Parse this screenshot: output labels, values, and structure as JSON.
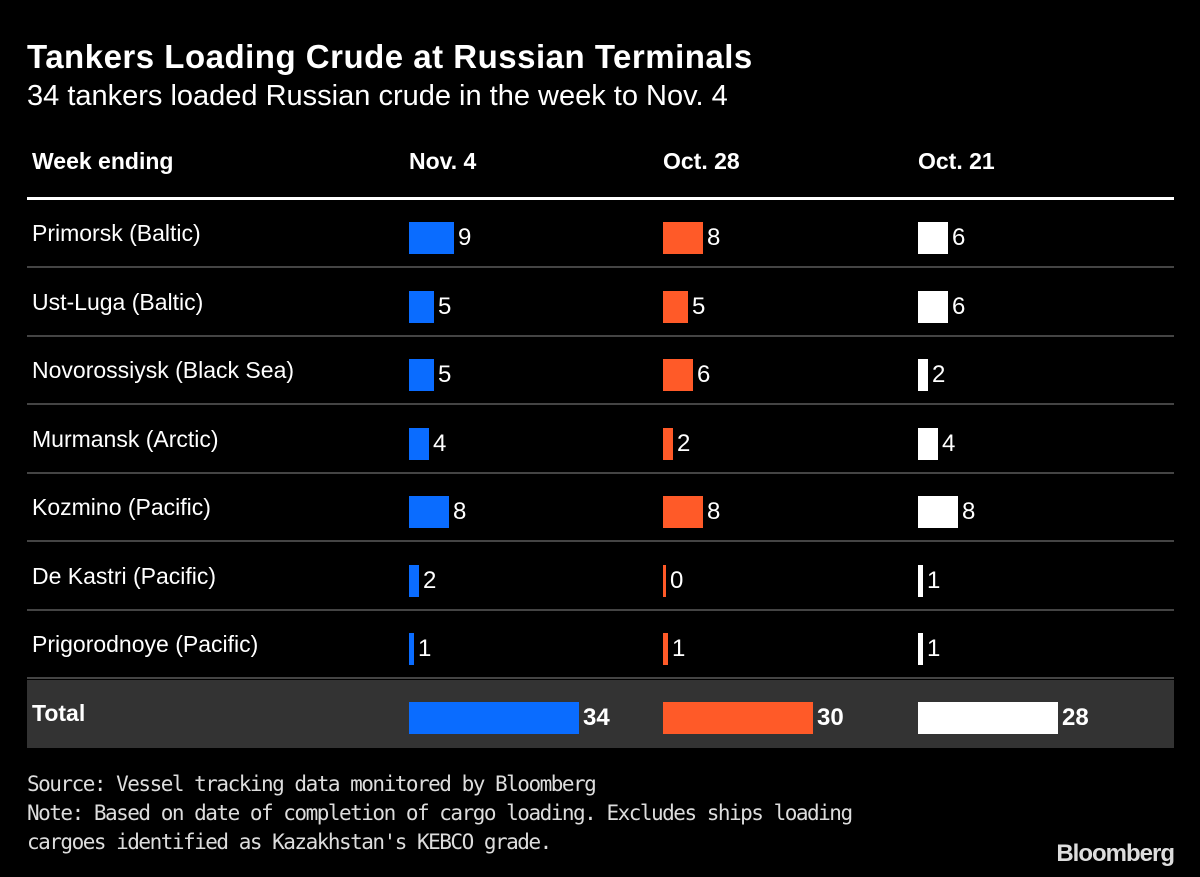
{
  "chart_data": {
    "type": "table",
    "title": "Tankers Loading Crude at Russian Terminals",
    "subtitle": "34 tankers loaded Russian crude in the week to Nov. 4",
    "row_header": "Week ending",
    "columns": [
      "Nov. 4",
      "Oct. 28",
      "Oct. 21"
    ],
    "colors": [
      "#0a6cff",
      "#ff5a28",
      "#ffffff"
    ],
    "rows": [
      {
        "label": "Primorsk (Baltic)",
        "values": [
          9,
          8,
          6
        ]
      },
      {
        "label": "Ust-Luga (Baltic)",
        "values": [
          5,
          5,
          6
        ]
      },
      {
        "label": "Novorossiysk (Black Sea)",
        "values": [
          5,
          6,
          2
        ]
      },
      {
        "label": "Murmansk (Arctic)",
        "values": [
          4,
          2,
          4
        ]
      },
      {
        "label": "Kozmino (Pacific)",
        "values": [
          8,
          8,
          8
        ]
      },
      {
        "label": "De Kastri (Pacific)",
        "values": [
          2,
          0,
          1
        ]
      },
      {
        "label": "Prigorodnoye (Pacific)",
        "values": [
          1,
          1,
          1
        ]
      }
    ],
    "total": {
      "label": "Total",
      "values": [
        34,
        30,
        28
      ]
    }
  },
  "footer": {
    "source": "Source: Vessel tracking data monitored by Bloomberg",
    "note1": "Note: Based on date of completion of cargo loading. Excludes ships loading",
    "note2": "cargoes identified as Kazakhstan's KEBCO grade."
  },
  "logo": "Bloomberg"
}
